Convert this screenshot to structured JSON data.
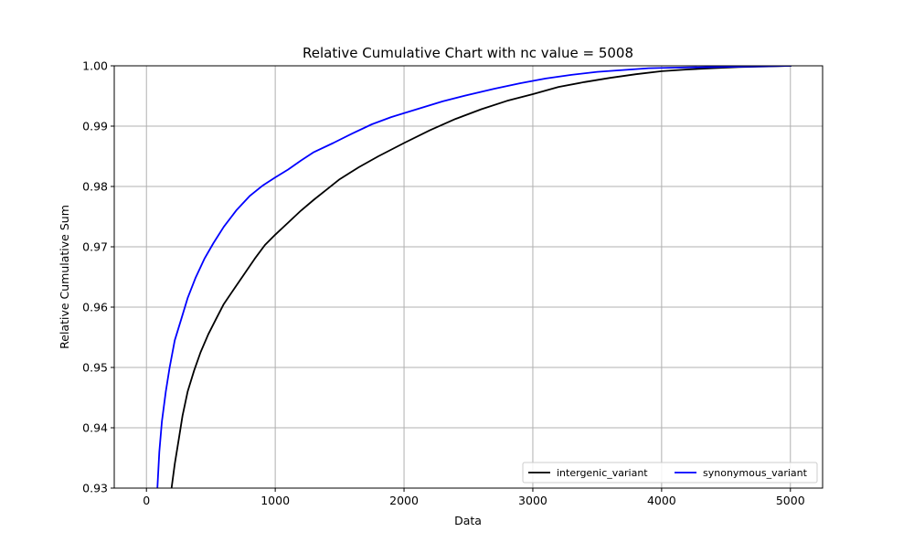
{
  "chart_data": {
    "type": "line",
    "title": "Relative Cumulative Chart with nc value = 5008",
    "xlabel": "Data",
    "ylabel": "Relative Cumulative Sum",
    "xlim": [
      -250,
      5250
    ],
    "ylim": [
      0.93,
      1.0
    ],
    "xticks": [
      0,
      1000,
      2000,
      3000,
      4000,
      5000
    ],
    "xtick_labels": [
      "0",
      "1000",
      "2000",
      "3000",
      "4000",
      "5000"
    ],
    "yticks": [
      0.93,
      0.94,
      0.95,
      0.96,
      0.97,
      0.98,
      0.99,
      1.0
    ],
    "ytick_labels": [
      "0.93",
      "0.94",
      "0.95",
      "0.96",
      "0.97",
      "0.98",
      "0.99",
      "1.00"
    ],
    "grid": true,
    "legend_position": "lower-right",
    "series": [
      {
        "name": "intergenic_variant",
        "color": "#000000",
        "x": [
          195,
          220,
          250,
          280,
          320,
          370,
          420,
          480,
          540,
          600,
          680,
          760,
          840,
          920,
          1000,
          1100,
          1200,
          1300,
          1400,
          1500,
          1650,
          1800,
          2000,
          2200,
          2400,
          2600,
          2800,
          3000,
          3200,
          3400,
          3600,
          3800,
          4000,
          4200,
          4400,
          4600,
          4800,
          5008
        ],
        "y": [
          0.93,
          0.934,
          0.938,
          0.942,
          0.946,
          0.9495,
          0.9525,
          0.9555,
          0.958,
          0.9605,
          0.963,
          0.9655,
          0.968,
          0.9703,
          0.972,
          0.974,
          0.976,
          0.9778,
          0.9795,
          0.9812,
          0.9832,
          0.985,
          0.9872,
          0.9893,
          0.9912,
          0.9928,
          0.9942,
          0.9953,
          0.9965,
          0.9973,
          0.998,
          0.9986,
          0.9991,
          0.9994,
          0.9996,
          0.9998,
          0.9999,
          1.0
        ]
      },
      {
        "name": "synonymous_variant",
        "color": "#0000ff",
        "x": [
          85,
          100,
          120,
          150,
          180,
          220,
          270,
          320,
          380,
          450,
          520,
          600,
          700,
          800,
          900,
          1000,
          1100,
          1200,
          1300,
          1450,
          1600,
          1750,
          1900,
          2100,
          2300,
          2500,
          2700,
          2900,
          3100,
          3300,
          3500,
          3700,
          3900,
          4100,
          4400,
          4700,
          5008
        ],
        "y": [
          0.93,
          0.936,
          0.941,
          0.946,
          0.95,
          0.9545,
          0.958,
          0.9615,
          0.9648,
          0.968,
          0.9706,
          0.9733,
          0.9761,
          0.9784,
          0.9801,
          0.9815,
          0.9828,
          0.9843,
          0.9857,
          0.9872,
          0.9888,
          0.9903,
          0.9915,
          0.9928,
          0.9941,
          0.9952,
          0.9962,
          0.9971,
          0.9979,
          0.9985,
          0.999,
          0.9993,
          0.9996,
          0.9997,
          0.9998,
          0.9999,
          1.0
        ]
      }
    ]
  }
}
